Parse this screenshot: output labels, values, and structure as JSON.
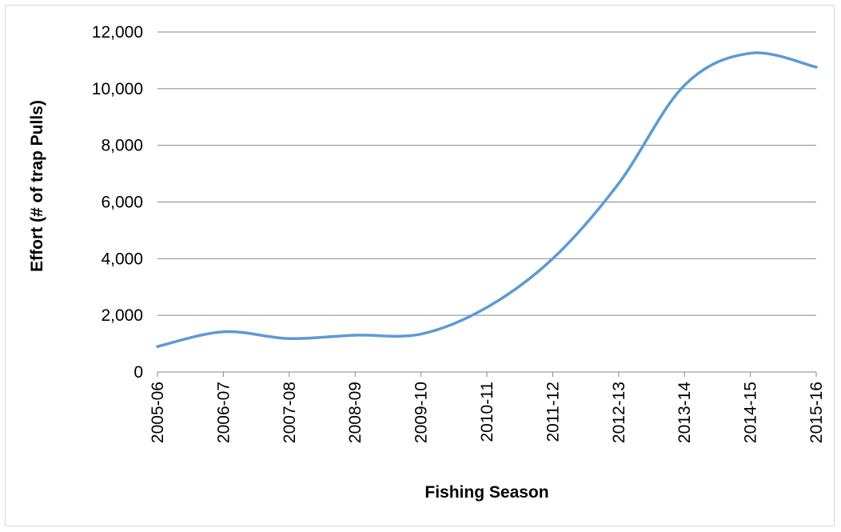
{
  "chart_data": {
    "type": "line",
    "title": "",
    "xlabel": "Fishing Season",
    "ylabel": "Effort (# of trap Pulls)",
    "ylim": [
      0,
      12000
    ],
    "y_ticks": [
      0,
      2000,
      4000,
      6000,
      8000,
      10000,
      12000
    ],
    "y_tick_labels": [
      "0",
      "2,000",
      "4,000",
      "6,000",
      "8,000",
      "10,000",
      "12,000"
    ],
    "grid": "horizontal",
    "legend": "none",
    "categories": [
      "2005-06",
      "2006-07",
      "2007-08",
      "2008-09",
      "2009-10",
      "2010-11",
      "2011-12",
      "2012-13",
      "2013-14",
      "2014-15",
      "2015-16"
    ],
    "series": [
      {
        "values": [
          900,
          1420,
          1180,
          1300,
          1340,
          2280,
          4000,
          6650,
          10120,
          11250,
          10760
        ],
        "color": "#5b9bd5"
      }
    ]
  }
}
